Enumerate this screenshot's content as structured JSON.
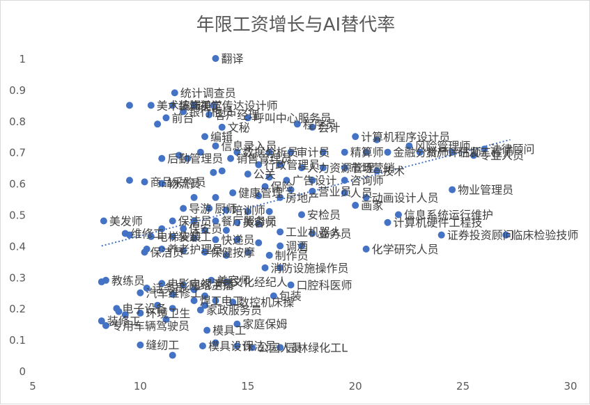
{
  "chart_data": {
    "type": "scatter",
    "title": "年限工资增长与AI替代率",
    "xlabel": "",
    "ylabel": "",
    "xlim": [
      5,
      30
    ],
    "ylim": [
      0,
      1
    ],
    "x_ticks": [
      5,
      10,
      15,
      20,
      25,
      30
    ],
    "y_ticks": [
      0,
      0.1,
      0.2,
      0.3,
      0.4,
      0.5,
      0.6,
      0.7,
      0.8,
      0.9,
      1
    ],
    "grid": false,
    "legend": "none",
    "colors": {
      "marker": "#4472c4",
      "trendline": "#4472c4",
      "axis_text": "#595959",
      "label_text": "#404040"
    },
    "trendline": {
      "type": "linear",
      "style": "dotted",
      "x": [
        8.2,
        27.2
      ],
      "y": [
        0.4,
        0.74
      ]
    },
    "points": [
      {
        "x": 13.5,
        "y": 1.0,
        "label": "翻译"
      },
      {
        "x": 11.6,
        "y": 0.89,
        "label": "统计调查员"
      },
      {
        "x": 9.5,
        "y": 0.85,
        "label": ""
      },
      {
        "x": 10.5,
        "y": 0.85,
        "label": "美术编辑"
      },
      {
        "x": 11.5,
        "y": 0.85,
        "label": "装饰美工"
      },
      {
        "x": 12.5,
        "y": 0.85,
        "label": "视觉传达设计师"
      },
      {
        "x": 13.4,
        "y": 0.85,
        "label": ""
      },
      {
        "x": 12.0,
        "y": 0.83,
        "label": "银行柜员"
      },
      {
        "x": 13.2,
        "y": 0.82,
        "label": "客户经理"
      },
      {
        "x": 15.0,
        "y": 0.81,
        "label": "呼叫中心服务员"
      },
      {
        "x": 11.2,
        "y": 0.81,
        "label": "前台"
      },
      {
        "x": 10.8,
        "y": 0.79,
        "label": ""
      },
      {
        "x": 13.8,
        "y": 0.78,
        "label": "文秘"
      },
      {
        "x": 17.3,
        "y": 0.79,
        "label": "程序员"
      },
      {
        "x": 18.0,
        "y": 0.78,
        "label": "会计"
      },
      {
        "x": 13.0,
        "y": 0.75,
        "label": "编辑"
      },
      {
        "x": 20.0,
        "y": 0.75,
        "label": "计算机程序设计员"
      },
      {
        "x": 21.0,
        "y": 0.74,
        "label": ""
      },
      {
        "x": 13.5,
        "y": 0.72,
        "label": "信息录入员"
      },
      {
        "x": 22.5,
        "y": 0.72,
        "label": "风险管理师"
      },
      {
        "x": 26.0,
        "y": 0.71,
        "label": "法律顾问"
      },
      {
        "x": 12.8,
        "y": 0.7,
        "label": ""
      },
      {
        "x": 14.5,
        "y": 0.7,
        "label": "数据分析员"
      },
      {
        "x": 16.0,
        "y": 0.7,
        "label": ""
      },
      {
        "x": 17.0,
        "y": 0.7,
        "label": "审计员"
      },
      {
        "x": 18.5,
        "y": 0.7,
        "label": ""
      },
      {
        "x": 19.5,
        "y": 0.7,
        "label": "精算师"
      },
      {
        "x": 20.5,
        "y": 0.7,
        "label": ""
      },
      {
        "x": 21.5,
        "y": 0.7,
        "label": "金融分析师"
      },
      {
        "x": 23.0,
        "y": 0.7,
        "label": "资产评估师"
      },
      {
        "x": 24.5,
        "y": 0.7,
        "label": "研发工程师"
      },
      {
        "x": 25.5,
        "y": 0.69,
        "label": "专业人员"
      },
      {
        "x": 11.8,
        "y": 0.69,
        "label": ""
      },
      {
        "x": 11.0,
        "y": 0.68,
        "label": "后勤管理员"
      },
      {
        "x": 12.2,
        "y": 0.68,
        "label": ""
      },
      {
        "x": 14.2,
        "y": 0.68,
        "label": "销售管理员"
      },
      {
        "x": 15.5,
        "y": 0.66,
        "label": "行政管理员"
      },
      {
        "x": 16.5,
        "y": 0.66,
        "label": ""
      },
      {
        "x": 17.5,
        "y": 0.65,
        "label": "人力资源管理"
      },
      {
        "x": 18.5,
        "y": 0.65,
        "label": ""
      },
      {
        "x": 19.5,
        "y": 0.65,
        "label": "市场营销"
      },
      {
        "x": 21.0,
        "y": 0.64,
        "label": "技术"
      },
      {
        "x": 13.8,
        "y": 0.64,
        "label": ""
      },
      {
        "x": 13.4,
        "y": 0.635,
        "label": ""
      },
      {
        "x": 15.0,
        "y": 0.63,
        "label": "公关"
      },
      {
        "x": 16.0,
        "y": 0.62,
        "label": ""
      },
      {
        "x": 16.8,
        "y": 0.61,
        "label": "广告设计"
      },
      {
        "x": 18.0,
        "y": 0.61,
        "label": ""
      },
      {
        "x": 19.5,
        "y": 0.61,
        "label": "咨询师"
      },
      {
        "x": 9.5,
        "y": 0.61,
        "label": ""
      },
      {
        "x": 10.2,
        "y": 0.605,
        "label": "商品采购员"
      },
      {
        "x": 11.0,
        "y": 0.6,
        "label": "物流员"
      },
      {
        "x": 15.8,
        "y": 0.59,
        "label": "保险"
      },
      {
        "x": 17.0,
        "y": 0.58,
        "label": ""
      },
      {
        "x": 18.0,
        "y": 0.575,
        "label": "营业员"
      },
      {
        "x": 19.5,
        "y": 0.57,
        "label": "人员"
      },
      {
        "x": 24.5,
        "y": 0.58,
        "label": "物业管理员"
      },
      {
        "x": 14.3,
        "y": 0.57,
        "label": "健康管理"
      },
      {
        "x": 15.5,
        "y": 0.56,
        "label": ""
      },
      {
        "x": 16.5,
        "y": 0.555,
        "label": "房地产"
      },
      {
        "x": 12.5,
        "y": 0.555,
        "label": ""
      },
      {
        "x": 13.5,
        "y": 0.555,
        "label": ""
      },
      {
        "x": 20.5,
        "y": 0.555,
        "label": "动画设计人员"
      },
      {
        "x": 20.0,
        "y": 0.53,
        "label": "画家"
      },
      {
        "x": 12.0,
        "y": 0.52,
        "label": "导游"
      },
      {
        "x": 13.2,
        "y": 0.52,
        "label": "厨师"
      },
      {
        "x": 14.0,
        "y": 0.515,
        "label": "培训师"
      },
      {
        "x": 15.0,
        "y": 0.51,
        "label": ""
      },
      {
        "x": 16.0,
        "y": 0.51,
        "label": ""
      },
      {
        "x": 17.5,
        "y": 0.5,
        "label": "安检员"
      },
      {
        "x": 22.0,
        "y": 0.5,
        "label": "信息系统运行维护"
      },
      {
        "x": 8.3,
        "y": 0.48,
        "label": "美发师"
      },
      {
        "x": 11.5,
        "y": 0.48,
        "label": "保洁员"
      },
      {
        "x": 12.5,
        "y": 0.48,
        "label": ""
      },
      {
        "x": 13.5,
        "y": 0.48,
        "label": "餐厅服务员"
      },
      {
        "x": 14.5,
        "y": 0.475,
        "label": "美容师"
      },
      {
        "x": 15.5,
        "y": 0.47,
        "label": ""
      },
      {
        "x": 21.5,
        "y": 0.475,
        "label": "计算机硬件工程技"
      },
      {
        "x": 11.0,
        "y": 0.455,
        "label": ""
      },
      {
        "x": 12.0,
        "y": 0.455,
        "label": "保安员"
      },
      {
        "x": 13.0,
        "y": 0.45,
        "label": ""
      },
      {
        "x": 14.0,
        "y": 0.45,
        "label": ""
      },
      {
        "x": 16.5,
        "y": 0.445,
        "label": "工业机器人"
      },
      {
        "x": 18.0,
        "y": 0.44,
        "label": "业务员"
      },
      {
        "x": 9.3,
        "y": 0.44,
        "label": "维修工"
      },
      {
        "x": 9.5,
        "y": 0.435,
        "label": ""
      },
      {
        "x": 24.0,
        "y": 0.435,
        "label": "证券投资顾问"
      },
      {
        "x": 27.0,
        "y": 0.435,
        "label": "临床检验技师"
      },
      {
        "x": 10.5,
        "y": 0.43,
        "label": "电梯安装"
      },
      {
        "x": 11.5,
        "y": 0.43,
        "label": "装卸工"
      },
      {
        "x": 12.5,
        "y": 0.425,
        "label": ""
      },
      {
        "x": 13.5,
        "y": 0.42,
        "label": "快递员"
      },
      {
        "x": 14.5,
        "y": 0.42,
        "label": ""
      },
      {
        "x": 15.5,
        "y": 0.41,
        "label": ""
      },
      {
        "x": 16.5,
        "y": 0.4,
        "label": "调酒"
      },
      {
        "x": 17.5,
        "y": 0.4,
        "label": ""
      },
      {
        "x": 20.5,
        "y": 0.39,
        "label": "化学研究人员"
      },
      {
        "x": 10.3,
        "y": 0.39,
        "label": ""
      },
      {
        "x": 10.2,
        "y": 0.38,
        "label": "保洁员"
      },
      {
        "x": 11.0,
        "y": 0.39,
        "label": "养老护理员"
      },
      {
        "x": 12.0,
        "y": 0.385,
        "label": ""
      },
      {
        "x": 13.0,
        "y": 0.38,
        "label": "保健按摩"
      },
      {
        "x": 14.0,
        "y": 0.37,
        "label": ""
      },
      {
        "x": 15.0,
        "y": 0.38,
        "label": ""
      },
      {
        "x": 16.0,
        "y": 0.37,
        "label": "制作员"
      },
      {
        "x": 15.8,
        "y": 0.33,
        "label": "消防设施操作员"
      },
      {
        "x": 16.5,
        "y": 0.33,
        "label": ""
      },
      {
        "x": 8.4,
        "y": 0.29,
        "label": "教练员"
      },
      {
        "x": 8.2,
        "y": 0.285,
        "label": ""
      },
      {
        "x": 11.0,
        "y": 0.28,
        "label": "电影电视演员"
      },
      {
        "x": 12.0,
        "y": 0.275,
        "label": "网络主播"
      },
      {
        "x": 13.3,
        "y": 0.29,
        "label": "美容师"
      },
      {
        "x": 14.0,
        "y": 0.285,
        "label": "文化经纪人"
      },
      {
        "x": 10.3,
        "y": 0.265,
        "label": "话务员"
      },
      {
        "x": 12.5,
        "y": 0.26,
        "label": ""
      },
      {
        "x": 17.0,
        "y": 0.275,
        "label": "口腔科医师"
      },
      {
        "x": 10.0,
        "y": 0.25,
        "label": "汽车维修工"
      },
      {
        "x": 11.5,
        "y": 0.245,
        "label": ""
      },
      {
        "x": 13.0,
        "y": 0.24,
        "label": ""
      },
      {
        "x": 16.2,
        "y": 0.24,
        "label": "包装"
      },
      {
        "x": 12.5,
        "y": 0.225,
        "label": "焊工"
      },
      {
        "x": 13.5,
        "y": 0.225,
        "label": "电工"
      },
      {
        "x": 14.3,
        "y": 0.22,
        "label": "数控机床操"
      },
      {
        "x": 10.8,
        "y": 0.21,
        "label": ""
      },
      {
        "x": 13.0,
        "y": 0.21,
        "label": ""
      },
      {
        "x": 8.9,
        "y": 0.2,
        "label": "电子设备"
      },
      {
        "x": 9.0,
        "y": 0.19,
        "label": ""
      },
      {
        "x": 11.5,
        "y": 0.2,
        "label": ""
      },
      {
        "x": 12.8,
        "y": 0.195,
        "label": "家政服务员"
      },
      {
        "x": 10.0,
        "y": 0.185,
        "label": "环境卫生"
      },
      {
        "x": 9.3,
        "y": 0.18,
        "label": ""
      },
      {
        "x": 8.2,
        "y": 0.16,
        "label": "装修工"
      },
      {
        "x": 11.2,
        "y": 0.165,
        "label": ""
      },
      {
        "x": 14.5,
        "y": 0.15,
        "label": "家庭保姆"
      },
      {
        "x": 8.4,
        "y": 0.145,
        "label": "专用车辆驾驶员"
      },
      {
        "x": 13.1,
        "y": 0.13,
        "label": "模具工"
      },
      {
        "x": 10.0,
        "y": 0.083,
        "label": "缝纫工"
      },
      {
        "x": 13.5,
        "y": 0.09,
        "label": ""
      },
      {
        "x": 12.9,
        "y": 0.08,
        "label": "模具设计"
      },
      {
        "x": 14.5,
        "y": 0.08,
        "label": "保洁员"
      },
      {
        "x": 15.2,
        "y": 0.075,
        "label": "公园人员"
      },
      {
        "x": 16.5,
        "y": 0.075,
        "label": "园林绿化工L"
      },
      {
        "x": 11.5,
        "y": 0.05,
        "label": ""
      }
    ]
  }
}
